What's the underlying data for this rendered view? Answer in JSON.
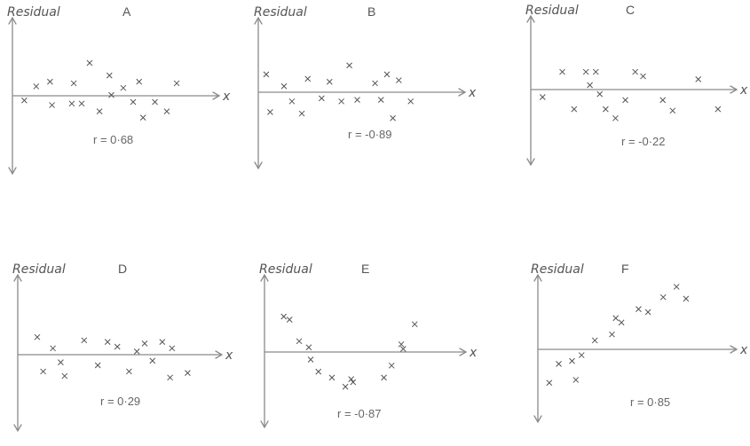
{
  "chart_data": [
    {
      "type": "scatter",
      "title": "A",
      "ylabel": "Residual",
      "xlabel": "x",
      "annotation": "r = 0·68",
      "xlim": [
        0,
        10
      ],
      "ylim": [
        -5,
        5
      ],
      "points": [
        [
          0.6,
          -0.3
        ],
        [
          1.2,
          0.6
        ],
        [
          1.9,
          0.9
        ],
        [
          2.0,
          -0.6
        ],
        [
          3.0,
          -0.5
        ],
        [
          3.1,
          0.8
        ],
        [
          3.5,
          -0.5
        ],
        [
          3.9,
          2.1
        ],
        [
          4.4,
          -1.0
        ],
        [
          4.9,
          1.3
        ],
        [
          5.0,
          0.05
        ],
        [
          5.6,
          0.5
        ],
        [
          6.1,
          -0.4
        ],
        [
          6.4,
          0.9
        ],
        [
          6.6,
          -1.4
        ],
        [
          7.2,
          -0.4
        ],
        [
          7.8,
          -1.0
        ],
        [
          8.3,
          0.8
        ]
      ]
    },
    {
      "type": "scatter",
      "title": "B",
      "ylabel": "Residual",
      "xlabel": "x",
      "annotation": "r = -0·89",
      "xlim": [
        0,
        10
      ],
      "ylim": [
        -5,
        5
      ],
      "points": [
        [
          0.4,
          1.2
        ],
        [
          0.6,
          -1.3
        ],
        [
          1.3,
          0.4
        ],
        [
          1.7,
          -0.6
        ],
        [
          2.2,
          -1.4
        ],
        [
          2.5,
          0.9
        ],
        [
          3.2,
          -0.4
        ],
        [
          3.6,
          0.7
        ],
        [
          4.2,
          -0.6
        ],
        [
          4.6,
          1.8
        ],
        [
          5.0,
          -0.5
        ],
        [
          5.9,
          0.6
        ],
        [
          6.2,
          -0.5
        ],
        [
          6.5,
          1.2
        ],
        [
          6.8,
          -1.7
        ],
        [
          7.1,
          0.8
        ],
        [
          7.7,
          -0.6
        ]
      ]
    },
    {
      "type": "scatter",
      "title": "C",
      "ylabel": "Residual",
      "xlabel": "x",
      "annotation": "r = -0·22",
      "xlim": [
        0,
        10
      ],
      "ylim": [
        -5,
        5
      ],
      "points": [
        [
          0.6,
          -0.5
        ],
        [
          1.6,
          1.2
        ],
        [
          2.2,
          -1.3
        ],
        [
          2.8,
          1.2
        ],
        [
          3.0,
          0.3
        ],
        [
          3.3,
          1.2
        ],
        [
          3.5,
          -0.3
        ],
        [
          3.8,
          -1.3
        ],
        [
          4.3,
          -1.9
        ],
        [
          4.8,
          -0.7
        ],
        [
          5.3,
          1.2
        ],
        [
          5.7,
          0.9
        ],
        [
          6.7,
          -0.7
        ],
        [
          7.2,
          -1.4
        ],
        [
          8.5,
          0.7
        ],
        [
          9.5,
          -1.3
        ]
      ]
    },
    {
      "type": "scatter",
      "title": "D",
      "ylabel": "Residual",
      "xlabel": "x",
      "annotation": "r = 0·29",
      "xlim": [
        0,
        10
      ],
      "ylim": [
        -5,
        5
      ],
      "points": [
        [
          1.0,
          1.1
        ],
        [
          1.3,
          -1.1
        ],
        [
          1.8,
          0.4
        ],
        [
          2.2,
          -0.5
        ],
        [
          2.4,
          -1.4
        ],
        [
          3.4,
          0.9
        ],
        [
          4.1,
          -0.7
        ],
        [
          4.6,
          0.8
        ],
        [
          5.1,
          0.5
        ],
        [
          5.7,
          -1.1
        ],
        [
          6.1,
          0.2
        ],
        [
          6.5,
          0.7
        ],
        [
          6.9,
          -0.4
        ],
        [
          7.4,
          0.8
        ],
        [
          7.8,
          -1.5
        ],
        [
          7.9,
          0.4
        ],
        [
          8.7,
          -1.2
        ]
      ]
    },
    {
      "type": "scatter",
      "title": "E",
      "ylabel": "Residual",
      "xlabel": "x",
      "annotation": "r = -0·87",
      "xlim": [
        0,
        10
      ],
      "ylim": [
        -5,
        5
      ],
      "points": [
        [
          1.0,
          2.3
        ],
        [
          1.3,
          2.1
        ],
        [
          1.8,
          0.7
        ],
        [
          2.3,
          0.3
        ],
        [
          2.4,
          -0.5
        ],
        [
          2.8,
          -1.3
        ],
        [
          3.5,
          -1.7
        ],
        [
          4.2,
          -2.3
        ],
        [
          4.5,
          -1.8
        ],
        [
          4.6,
          -2.0
        ],
        [
          6.2,
          -1.7
        ],
        [
          6.6,
          -0.9
        ],
        [
          7.1,
          0.5
        ],
        [
          7.2,
          0.2
        ],
        [
          7.8,
          1.8
        ]
      ]
    },
    {
      "type": "scatter",
      "title": "F",
      "ylabel": "Residual",
      "xlabel": "x",
      "annotation": "r = 0·85",
      "xlim": [
        0,
        10
      ],
      "ylim": [
        -5,
        5
      ],
      "points": [
        [
          0.6,
          -2.3
        ],
        [
          1.1,
          -1.0
        ],
        [
          1.8,
          -0.8
        ],
        [
          2.0,
          -2.1
        ],
        [
          2.3,
          -0.4
        ],
        [
          3.0,
          0.6
        ],
        [
          3.9,
          1.0
        ],
        [
          4.1,
          2.1
        ],
        [
          4.4,
          1.8
        ],
        [
          5.3,
          2.7
        ],
        [
          5.8,
          2.5
        ],
        [
          6.6,
          3.5
        ],
        [
          7.3,
          4.2
        ],
        [
          7.8,
          3.4
        ]
      ]
    }
  ]
}
